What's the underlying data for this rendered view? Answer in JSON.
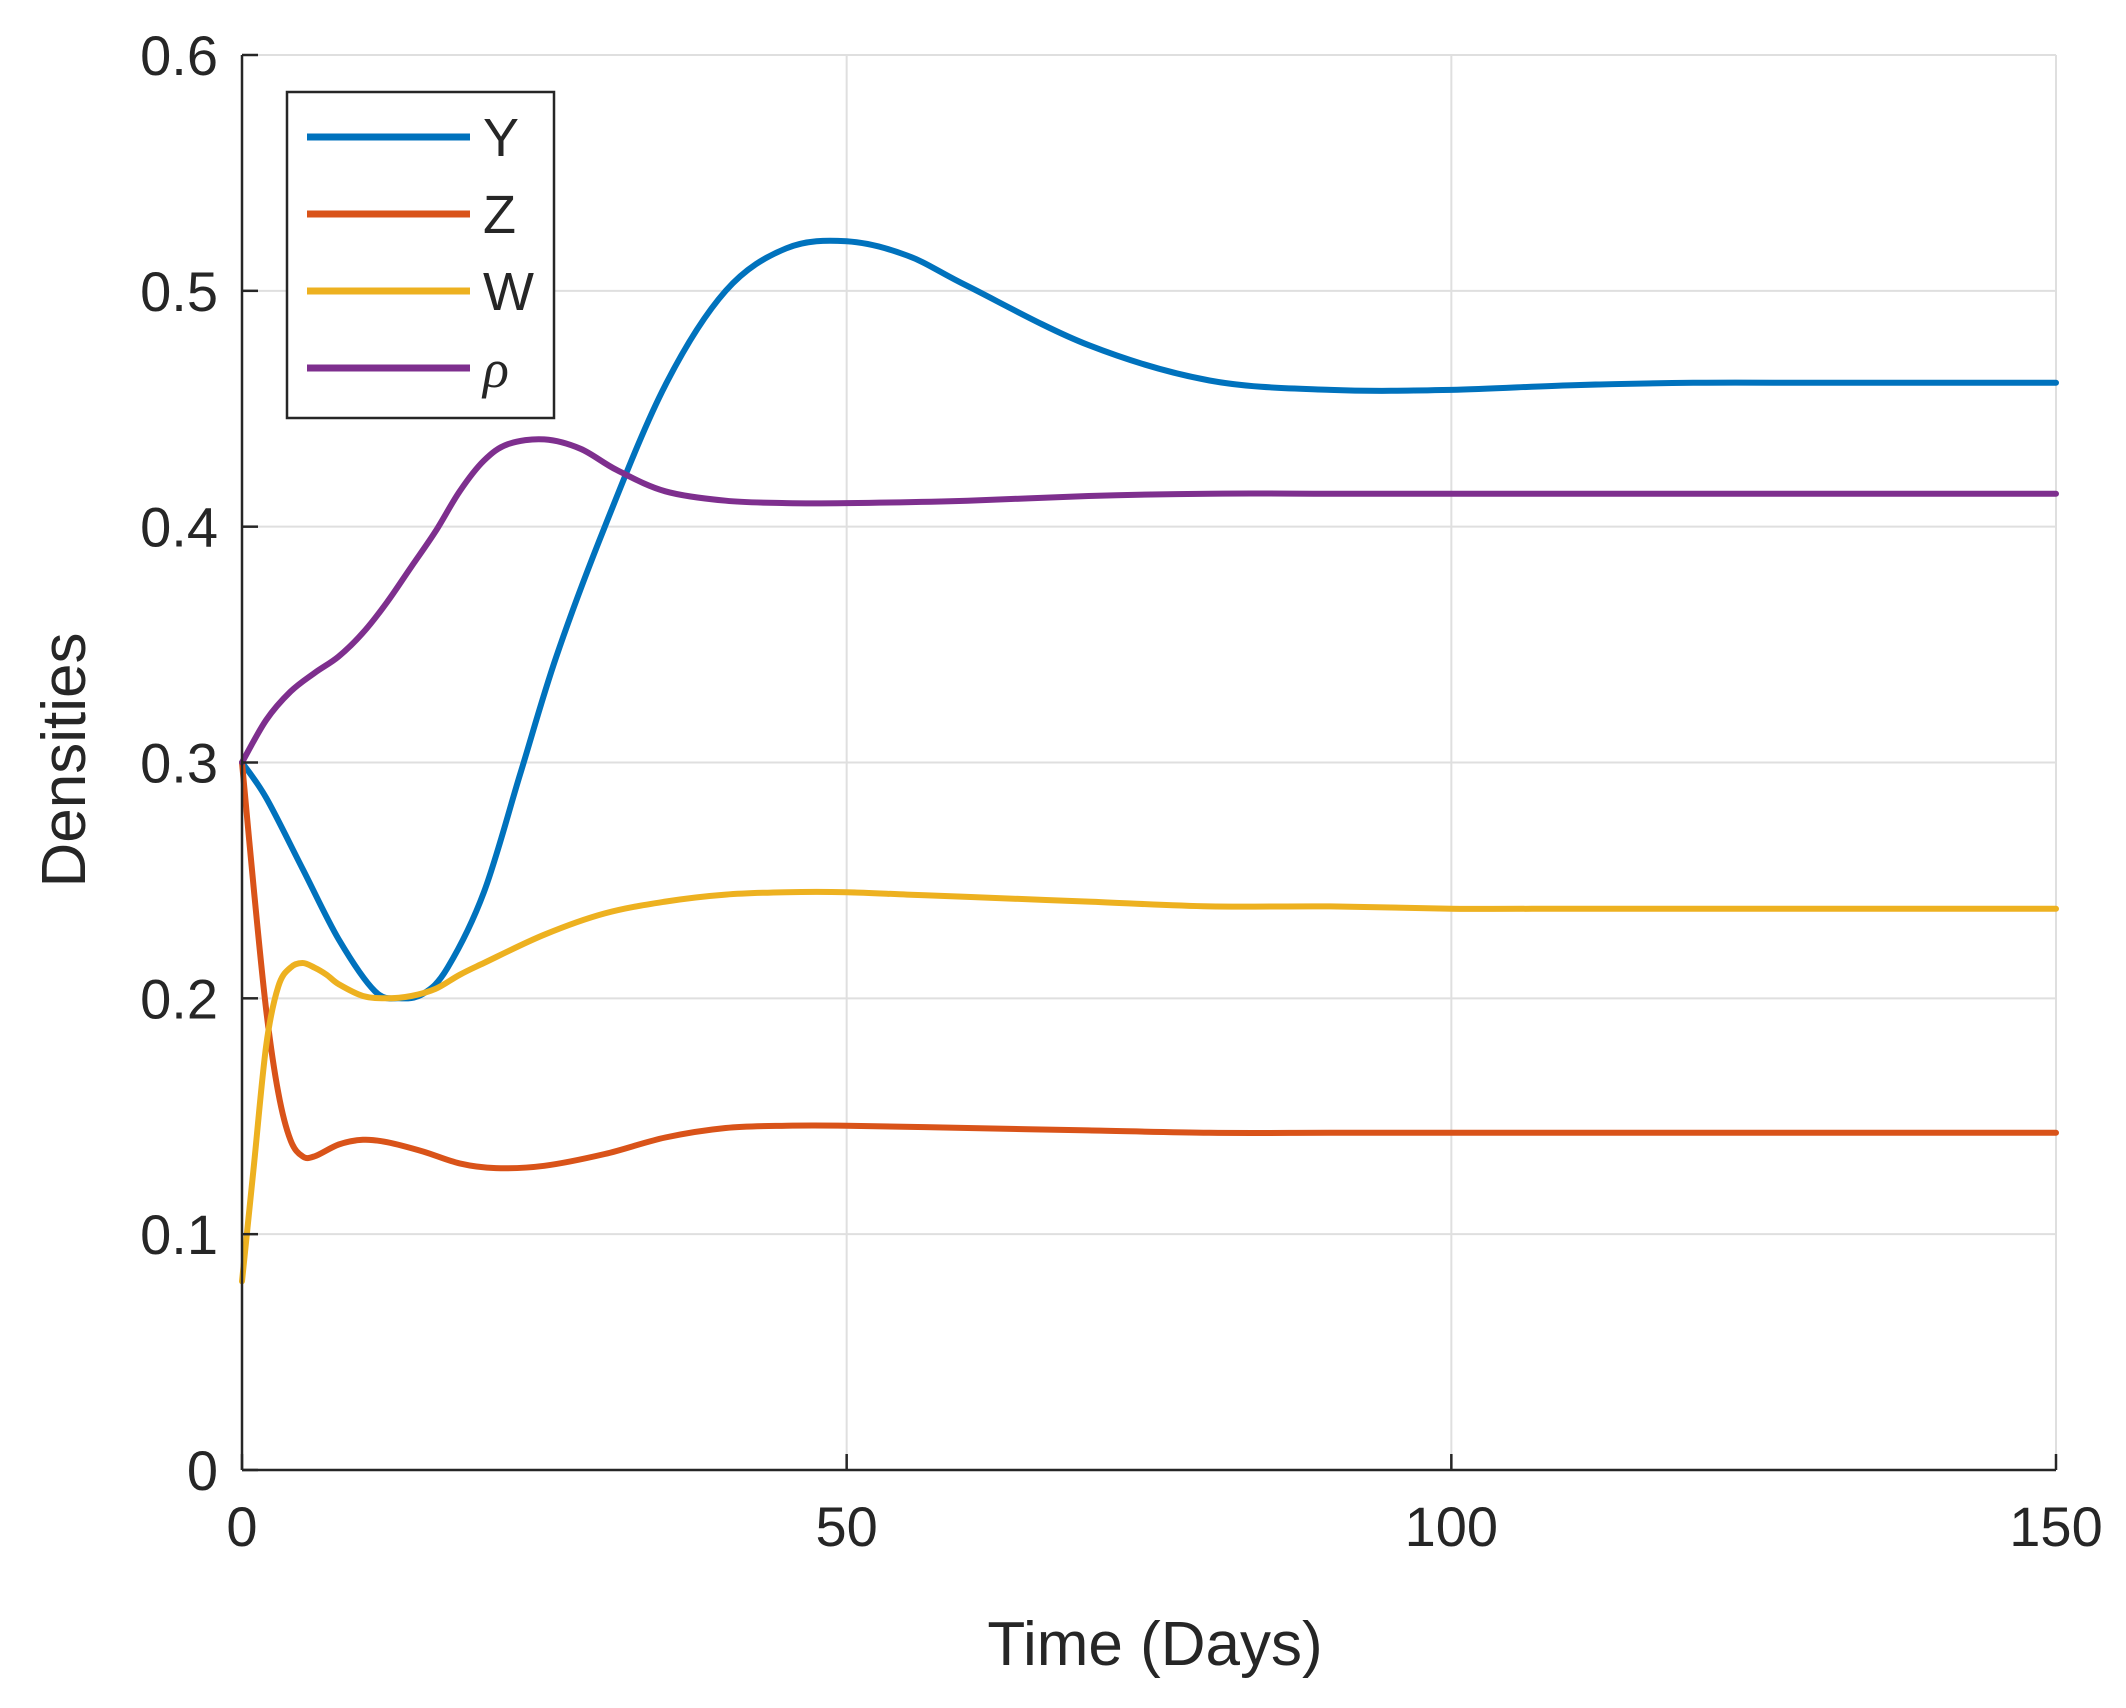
{
  "chart_data": {
    "type": "line",
    "title": "",
    "xlabel": "Time (Days)",
    "ylabel": "Densities",
    "xlim": [
      0,
      150
    ],
    "ylim": [
      0,
      0.6
    ],
    "xticks": [
      0,
      50,
      100,
      150
    ],
    "xtick_labels": [
      "0",
      "50",
      "100",
      "150"
    ],
    "yticks": [
      0,
      0.1,
      0.2,
      0.3,
      0.4,
      0.5,
      0.6
    ],
    "ytick_labels": [
      "0",
      "0.1",
      "0.2",
      "0.3",
      "0.4",
      "0.5",
      "0.6"
    ],
    "grid": true,
    "legend_position": "top-left",
    "series": [
      {
        "name": "Y",
        "color": "#0072BD",
        "x": [
          0,
          2,
          5,
          8,
          11,
          13,
          15,
          17,
          20,
          23,
          26,
          30,
          35,
          40,
          45,
          50,
          55,
          60,
          70,
          80,
          90,
          100,
          110,
          120,
          130,
          140,
          150
        ],
        "y": [
          0.3,
          0.285,
          0.255,
          0.225,
          0.203,
          0.2,
          0.202,
          0.213,
          0.245,
          0.295,
          0.345,
          0.4,
          0.46,
          0.5,
          0.518,
          0.521,
          0.515,
          0.502,
          0.477,
          0.462,
          0.458,
          0.458,
          0.46,
          0.461,
          0.461,
          0.461,
          0.461
        ]
      },
      {
        "name": "Z",
        "color": "#D95319",
        "x": [
          0,
          1,
          2,
          3,
          4,
          5,
          6,
          8,
          10,
          12,
          15,
          18,
          21,
          25,
          30,
          35,
          40,
          45,
          50,
          60,
          70,
          80,
          90,
          100,
          110,
          120,
          130,
          140,
          150
        ],
        "y": [
          0.3,
          0.245,
          0.195,
          0.16,
          0.14,
          0.133,
          0.133,
          0.138,
          0.14,
          0.139,
          0.135,
          0.13,
          0.128,
          0.129,
          0.134,
          0.141,
          0.145,
          0.146,
          0.146,
          0.145,
          0.144,
          0.143,
          0.143,
          0.143,
          0.143,
          0.143,
          0.143,
          0.143,
          0.143
        ]
      },
      {
        "name": "W",
        "color": "#EDB120",
        "x": [
          0,
          1,
          2,
          3,
          4,
          5,
          6,
          7,
          8,
          10,
          12,
          14,
          16,
          18,
          20,
          25,
          30,
          35,
          40,
          45,
          50,
          55,
          60,
          70,
          80,
          90,
          100,
          110,
          120,
          130,
          140,
          150
        ],
        "y": [
          0.08,
          0.13,
          0.18,
          0.205,
          0.213,
          0.215,
          0.213,
          0.21,
          0.206,
          0.201,
          0.2,
          0.201,
          0.204,
          0.21,
          0.215,
          0.227,
          0.236,
          0.241,
          0.244,
          0.245,
          0.245,
          0.244,
          0.243,
          0.241,
          0.239,
          0.239,
          0.238,
          0.238,
          0.238,
          0.238,
          0.238,
          0.238
        ]
      },
      {
        "name": "ρ",
        "color": "#7E2F8E",
        "x": [
          0,
          2,
          4,
          6,
          8,
          10,
          12,
          14,
          16,
          18,
          20,
          22,
          25,
          28,
          31,
          35,
          40,
          45,
          50,
          60,
          70,
          80,
          90,
          100,
          110,
          120,
          130,
          140,
          150
        ],
        "y": [
          0.3,
          0.318,
          0.33,
          0.338,
          0.345,
          0.355,
          0.368,
          0.383,
          0.398,
          0.415,
          0.428,
          0.435,
          0.437,
          0.433,
          0.424,
          0.415,
          0.411,
          0.41,
          0.41,
          0.411,
          0.413,
          0.414,
          0.414,
          0.414,
          0.414,
          0.414,
          0.414,
          0.414,
          0.414
        ]
      }
    ]
  }
}
